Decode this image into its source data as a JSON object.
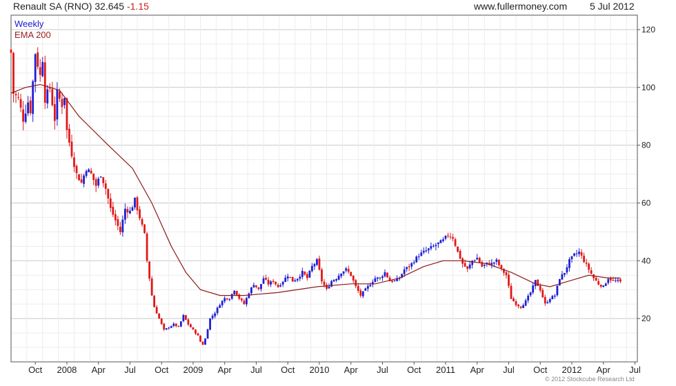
{
  "header": {
    "title_prefix": "Renault SA (RNO) 32.645 ",
    "change": "-1.15",
    "website": "www.fullermoney.com",
    "date": "5 Jul 2012"
  },
  "footer": {
    "copyright": "© 2012 Stockcube Research Ltd"
  },
  "colors": {
    "up": "#1f1fd6",
    "down": "#e01818",
    "ema": "#8b1a1a",
    "grid": "#d9d9d9",
    "axis": "#555555",
    "text": "#222222"
  },
  "chart_data": {
    "type": "candlestick",
    "title": "Renault SA (RNO) 32.645 -1.15",
    "ylim": [
      5,
      125
    ],
    "y_ticks": [
      20,
      40,
      60,
      80,
      100,
      120
    ],
    "y_axis_position": "right",
    "grid": true,
    "legend": {
      "position": "top-left",
      "entries": [
        "Weekly",
        "EMA 200"
      ]
    },
    "x_tick_labels": [
      "Oct",
      "2008",
      "Apr",
      "Jul",
      "Oct",
      "2009",
      "Apr",
      "Jul",
      "Oct",
      "2010",
      "Apr",
      "Jul",
      "Oct",
      "2011",
      "Apr",
      "Jul",
      "Oct",
      "2012",
      "Apr",
      "Jul"
    ],
    "x_range_weeks": [
      0,
      258
    ],
    "tick_weeks": [
      10,
      23,
      36,
      49,
      62,
      75,
      88,
      101,
      114,
      127,
      140,
      153,
      166,
      179,
      192,
      205,
      218,
      231,
      244,
      257
    ],
    "price_anchors": [
      [
        0,
        112
      ],
      [
        1,
        98
      ],
      [
        3,
        96
      ],
      [
        5,
        89
      ],
      [
        7,
        95
      ],
      [
        8,
        92
      ],
      [
        10,
        112
      ],
      [
        12,
        104
      ],
      [
        13,
        110
      ],
      [
        14,
        96
      ],
      [
        16,
        100
      ],
      [
        18,
        89
      ],
      [
        19,
        98
      ],
      [
        21,
        94
      ],
      [
        22,
        97
      ],
      [
        23,
        85
      ],
      [
        25,
        77
      ],
      [
        27,
        70
      ],
      [
        29,
        67
      ],
      [
        31,
        72
      ],
      [
        33,
        70
      ],
      [
        35,
        66
      ],
      [
        37,
        70
      ],
      [
        39,
        65
      ],
      [
        41,
        58
      ],
      [
        43,
        54
      ],
      [
        45,
        50
      ],
      [
        47,
        58
      ],
      [
        49,
        57
      ],
      [
        51,
        61
      ],
      [
        53,
        55
      ],
      [
        55,
        49
      ],
      [
        56,
        40
      ],
      [
        57,
        34
      ],
      [
        58,
        28
      ],
      [
        59,
        24
      ],
      [
        61,
        20
      ],
      [
        63,
        16
      ],
      [
        65,
        17
      ],
      [
        67,
        18
      ],
      [
        69,
        17
      ],
      [
        71,
        21
      ],
      [
        73,
        18
      ],
      [
        75,
        16
      ],
      [
        77,
        14
      ],
      [
        78,
        12
      ],
      [
        79,
        11
      ],
      [
        80,
        13
      ],
      [
        82,
        20
      ],
      [
        84,
        22
      ],
      [
        86,
        25
      ],
      [
        88,
        27
      ],
      [
        90,
        27
      ],
      [
        92,
        30
      ],
      [
        94,
        27
      ],
      [
        96,
        25
      ],
      [
        98,
        29
      ],
      [
        100,
        32
      ],
      [
        102,
        30
      ],
      [
        104,
        34
      ],
      [
        106,
        32
      ],
      [
        108,
        33
      ],
      [
        110,
        31
      ],
      [
        112,
        33
      ],
      [
        114,
        35
      ],
      [
        116,
        33
      ],
      [
        118,
        34
      ],
      [
        120,
        36
      ],
      [
        122,
        34
      ],
      [
        124,
        38
      ],
      [
        126,
        40
      ],
      [
        128,
        33
      ],
      [
        130,
        30
      ],
      [
        132,
        33
      ],
      [
        134,
        34
      ],
      [
        136,
        36
      ],
      [
        138,
        37
      ],
      [
        140,
        35
      ],
      [
        142,
        31
      ],
      [
        144,
        28
      ],
      [
        146,
        30
      ],
      [
        148,
        32
      ],
      [
        150,
        34
      ],
      [
        152,
        34
      ],
      [
        154,
        36
      ],
      [
        156,
        33
      ],
      [
        158,
        33
      ],
      [
        160,
        34
      ],
      [
        162,
        37
      ],
      [
        164,
        38
      ],
      [
        166,
        40
      ],
      [
        168,
        42
      ],
      [
        170,
        43
      ],
      [
        172,
        44
      ],
      [
        174,
        45
      ],
      [
        176,
        46
      ],
      [
        178,
        47
      ],
      [
        180,
        49
      ],
      [
        182,
        48
      ],
      [
        184,
        43
      ],
      [
        186,
        39
      ],
      [
        188,
        37
      ],
      [
        190,
        40
      ],
      [
        192,
        41
      ],
      [
        194,
        38
      ],
      [
        196,
        39
      ],
      [
        198,
        39
      ],
      [
        200,
        40
      ],
      [
        202,
        37
      ],
      [
        204,
        35
      ],
      [
        206,
        27
      ],
      [
        208,
        25
      ],
      [
        210,
        24
      ],
      [
        212,
        26
      ],
      [
        214,
        29
      ],
      [
        216,
        33
      ],
      [
        218,
        30
      ],
      [
        220,
        25
      ],
      [
        222,
        27
      ],
      [
        224,
        28
      ],
      [
        226,
        34
      ],
      [
        228,
        36
      ],
      [
        230,
        40
      ],
      [
        232,
        42
      ],
      [
        234,
        43
      ],
      [
        236,
        40
      ],
      [
        238,
        37
      ],
      [
        240,
        34
      ],
      [
        242,
        32
      ],
      [
        244,
        31
      ],
      [
        246,
        34
      ],
      [
        248,
        33
      ],
      [
        250,
        33
      ],
      [
        251,
        32.6
      ]
    ],
    "series": [
      {
        "name": "Weekly",
        "type": "candlestick"
      },
      {
        "name": "EMA 200",
        "type": "line",
        "points": [
          [
            0,
            98
          ],
          [
            6,
            100
          ],
          [
            12,
            101
          ],
          [
            20,
            99
          ],
          [
            28,
            90
          ],
          [
            40,
            80
          ],
          [
            50,
            72
          ],
          [
            58,
            60
          ],
          [
            66,
            45
          ],
          [
            72,
            36
          ],
          [
            78,
            30
          ],
          [
            86,
            28
          ],
          [
            96,
            28
          ],
          [
            110,
            29
          ],
          [
            126,
            31
          ],
          [
            140,
            32
          ],
          [
            150,
            32
          ],
          [
            160,
            34
          ],
          [
            170,
            38
          ],
          [
            178,
            40
          ],
          [
            186,
            40
          ],
          [
            196,
            39
          ],
          [
            206,
            36
          ],
          [
            216,
            32
          ],
          [
            222,
            31
          ],
          [
            230,
            33
          ],
          [
            238,
            35
          ],
          [
            246,
            34
          ],
          [
            251,
            34
          ]
        ]
      }
    ]
  }
}
